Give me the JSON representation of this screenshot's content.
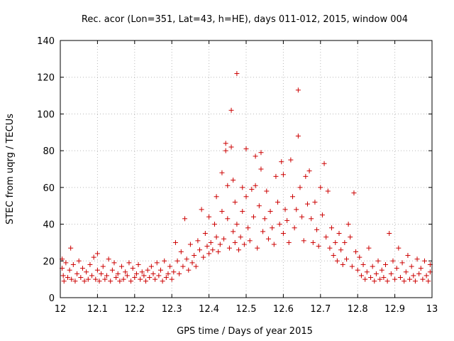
{
  "chart_data": {
    "type": "scatter",
    "title": "Rec. acor (Lon=351, Lat=43, h=HE), days 011-012, 2015, window 004",
    "xlabel": "GPS time / Days of year 2015",
    "ylabel": "STEC from uqrg / TECUs",
    "xlim": [
      12,
      13
    ],
    "ylim": [
      0,
      140
    ],
    "x_ticks": [
      "12",
      "12.1",
      "12.2",
      "12.3",
      "12.4",
      "12.5",
      "12.6",
      "12.7",
      "12.8",
      "12.9",
      "13"
    ],
    "y_ticks": [
      "0",
      "20",
      "40",
      "60",
      "80",
      "100",
      "120",
      "140"
    ],
    "grid": true,
    "marker": "+",
    "color": "#cc0000",
    "series": [
      {
        "points": [
          [
            12.005,
            21
          ],
          [
            12.005,
            16
          ],
          [
            12.008,
            12
          ],
          [
            12.01,
            9
          ],
          [
            12.015,
            19
          ],
          [
            12.02,
            11
          ],
          [
            12.025,
            15
          ],
          [
            12.028,
            27
          ],
          [
            12.03,
            10
          ],
          [
            12.035,
            18
          ],
          [
            12.04,
            9
          ],
          [
            12.045,
            13
          ],
          [
            12.05,
            20
          ],
          [
            12.055,
            11
          ],
          [
            12.06,
            16
          ],
          [
            12.065,
            9
          ],
          [
            12.07,
            14
          ],
          [
            12.075,
            10
          ],
          [
            12.08,
            18
          ],
          [
            12.085,
            12
          ],
          [
            12.09,
            22
          ],
          [
            12.095,
            10
          ],
          [
            12.1,
            15
          ],
          [
            12.1,
            24
          ],
          [
            12.105,
            9
          ],
          [
            12.11,
            13
          ],
          [
            12.115,
            17
          ],
          [
            12.12,
            10
          ],
          [
            12.125,
            12
          ],
          [
            12.13,
            21
          ],
          [
            12.135,
            9
          ],
          [
            12.14,
            15
          ],
          [
            12.145,
            19
          ],
          [
            12.15,
            11
          ],
          [
            12.155,
            13
          ],
          [
            12.16,
            9
          ],
          [
            12.165,
            17
          ],
          [
            12.17,
            10
          ],
          [
            12.175,
            14
          ],
          [
            12.18,
            12
          ],
          [
            12.185,
            19
          ],
          [
            12.19,
            9
          ],
          [
            12.195,
            16
          ],
          [
            12.2,
            11
          ],
          [
            12.205,
            13
          ],
          [
            12.21,
            18
          ],
          [
            12.215,
            10
          ],
          [
            12.22,
            14
          ],
          [
            12.225,
            12
          ],
          [
            12.23,
            9
          ],
          [
            12.235,
            15
          ],
          [
            12.24,
            11
          ],
          [
            12.245,
            17
          ],
          [
            12.25,
            13
          ],
          [
            12.255,
            10
          ],
          [
            12.26,
            19
          ],
          [
            12.265,
            12
          ],
          [
            12.27,
            15
          ],
          [
            12.275,
            9
          ],
          [
            12.28,
            20
          ],
          [
            12.285,
            11
          ],
          [
            12.29,
            13
          ],
          [
            12.295,
            17
          ],
          [
            12.3,
            10
          ],
          [
            12.305,
            14
          ],
          [
            12.31,
            30
          ],
          [
            12.315,
            20
          ],
          [
            12.32,
            13
          ],
          [
            12.325,
            25
          ],
          [
            12.33,
            17
          ],
          [
            12.335,
            43
          ],
          [
            12.34,
            21
          ],
          [
            12.345,
            15
          ],
          [
            12.35,
            29
          ],
          [
            12.355,
            19
          ],
          [
            12.36,
            23
          ],
          [
            12.365,
            17
          ],
          [
            12.37,
            31
          ],
          [
            12.375,
            26
          ],
          [
            12.38,
            48
          ],
          [
            12.385,
            22
          ],
          [
            12.39,
            35
          ],
          [
            12.395,
            28
          ],
          [
            12.4,
            44
          ],
          [
            12.4,
            24
          ],
          [
            12.405,
            30
          ],
          [
            12.41,
            26
          ],
          [
            12.415,
            40
          ],
          [
            12.42,
            55
          ],
          [
            12.42,
            33
          ],
          [
            12.425,
            25
          ],
          [
            12.43,
            29
          ],
          [
            12.435,
            68
          ],
          [
            12.435,
            47
          ],
          [
            12.44,
            32
          ],
          [
            12.445,
            84
          ],
          [
            12.445,
            80
          ],
          [
            12.45,
            61
          ],
          [
            12.45,
            43
          ],
          [
            12.455,
            27
          ],
          [
            12.46,
            102
          ],
          [
            12.46,
            82
          ],
          [
            12.465,
            64
          ],
          [
            12.465,
            36
          ],
          [
            12.47,
            52
          ],
          [
            12.47,
            30
          ],
          [
            12.475,
            122
          ],
          [
            12.475,
            40
          ],
          [
            12.48,
            26
          ],
          [
            12.485,
            33
          ],
          [
            12.49,
            60
          ],
          [
            12.49,
            47
          ],
          [
            12.495,
            29
          ],
          [
            12.5,
            81
          ],
          [
            12.5,
            55
          ],
          [
            12.505,
            38
          ],
          [
            12.51,
            31
          ],
          [
            12.515,
            59
          ],
          [
            12.52,
            44
          ],
          [
            12.525,
            77
          ],
          [
            12.525,
            61
          ],
          [
            12.53,
            27
          ],
          [
            12.535,
            50
          ],
          [
            12.54,
            79
          ],
          [
            12.54,
            70
          ],
          [
            12.545,
            36
          ],
          [
            12.55,
            43
          ],
          [
            12.555,
            58
          ],
          [
            12.56,
            32
          ],
          [
            12.565,
            47
          ],
          [
            12.57,
            38
          ],
          [
            12.575,
            29
          ],
          [
            12.58,
            66
          ],
          [
            12.585,
            52
          ],
          [
            12.59,
            40
          ],
          [
            12.595,
            74
          ],
          [
            12.6,
            67
          ],
          [
            12.6,
            35
          ],
          [
            12.605,
            48
          ],
          [
            12.61,
            42
          ],
          [
            12.615,
            30
          ],
          [
            12.62,
            75
          ],
          [
            12.625,
            55
          ],
          [
            12.63,
            38
          ],
          [
            12.635,
            48
          ],
          [
            12.64,
            113
          ],
          [
            12.64,
            88
          ],
          [
            12.645,
            60
          ],
          [
            12.65,
            44
          ],
          [
            12.655,
            31
          ],
          [
            12.66,
            66
          ],
          [
            12.665,
            51
          ],
          [
            12.67,
            69
          ],
          [
            12.675,
            43
          ],
          [
            12.68,
            30
          ],
          [
            12.685,
            52
          ],
          [
            12.69,
            37
          ],
          [
            12.695,
            28
          ],
          [
            12.7,
            60
          ],
          [
            12.705,
            45
          ],
          [
            12.71,
            73
          ],
          [
            12.715,
            33
          ],
          [
            12.72,
            58
          ],
          [
            12.725,
            27
          ],
          [
            12.73,
            38
          ],
          [
            12.735,
            23
          ],
          [
            12.74,
            30
          ],
          [
            12.745,
            20
          ],
          [
            12.75,
            35
          ],
          [
            12.755,
            26
          ],
          [
            12.76,
            18
          ],
          [
            12.765,
            30
          ],
          [
            12.77,
            21
          ],
          [
            12.775,
            40
          ],
          [
            12.78,
            33
          ],
          [
            12.785,
            17
          ],
          [
            12.79,
            57
          ],
          [
            12.795,
            25
          ],
          [
            12.8,
            15
          ],
          [
            12.805,
            22
          ],
          [
            12.81,
            12
          ],
          [
            12.815,
            18
          ],
          [
            12.82,
            10
          ],
          [
            12.825,
            14
          ],
          [
            12.83,
            27
          ],
          [
            12.835,
            11
          ],
          [
            12.84,
            17
          ],
          [
            12.845,
            9
          ],
          [
            12.85,
            13
          ],
          [
            12.855,
            20
          ],
          [
            12.86,
            10
          ],
          [
            12.865,
            15
          ],
          [
            12.87,
            11
          ],
          [
            12.875,
            18
          ],
          [
            12.88,
            9
          ],
          [
            12.885,
            35
          ],
          [
            12.89,
            13
          ],
          [
            12.895,
            20
          ],
          [
            12.9,
            10
          ],
          [
            12.905,
            16
          ],
          [
            12.91,
            27
          ],
          [
            12.915,
            11
          ],
          [
            12.92,
            19
          ],
          [
            12.925,
            9
          ],
          [
            12.93,
            14
          ],
          [
            12.935,
            23
          ],
          [
            12.94,
            10
          ],
          [
            12.945,
            17
          ],
          [
            12.95,
            12
          ],
          [
            12.955,
            9
          ],
          [
            12.96,
            21
          ],
          [
            12.965,
            13
          ],
          [
            12.97,
            16
          ],
          [
            12.975,
            10
          ],
          [
            12.98,
            20
          ],
          [
            12.985,
            12
          ],
          [
            12.99,
            9
          ],
          [
            12.995,
            18
          ],
          [
            12.995,
            14
          ]
        ]
      }
    ]
  }
}
